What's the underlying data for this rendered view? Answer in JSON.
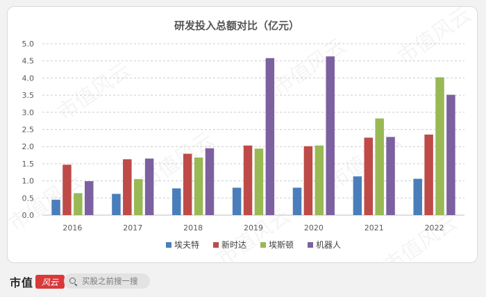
{
  "watermark": "市值风云",
  "footer": {
    "brand": "市值",
    "brand_mark": "风云",
    "search_placeholder": "买股之前搜一搜"
  },
  "chart_data": {
    "type": "bar",
    "title": "研发投入总额对比（亿元）",
    "xlabel": "",
    "ylabel": "",
    "categories": [
      "2016",
      "2017",
      "2018",
      "2019",
      "2020",
      "2021",
      "2022"
    ],
    "ylim": [
      0,
      5.0
    ],
    "yticks": [
      "0.0",
      "0.5",
      "1.0",
      "1.5",
      "2.0",
      "2.5",
      "3.0",
      "3.5",
      "4.0",
      "4.5",
      "5.0"
    ],
    "grid": true,
    "legend_position": "bottom",
    "series": [
      {
        "name": "埃夫特",
        "color": "#4a7ebb",
        "values": [
          0.45,
          0.62,
          0.78,
          0.8,
          0.8,
          1.13,
          1.06
        ]
      },
      {
        "name": "新时达",
        "color": "#be4b48",
        "values": [
          1.47,
          1.63,
          1.79,
          2.03,
          2.01,
          2.26,
          2.35
        ]
      },
      {
        "name": "埃斯顿",
        "color": "#98b954",
        "values": [
          0.64,
          1.05,
          1.68,
          1.94,
          2.03,
          2.82,
          4.02
        ]
      },
      {
        "name": "机器人",
        "color": "#7d60a0",
        "values": [
          0.99,
          1.65,
          1.95,
          4.58,
          4.63,
          2.28,
          3.51
        ]
      }
    ]
  }
}
